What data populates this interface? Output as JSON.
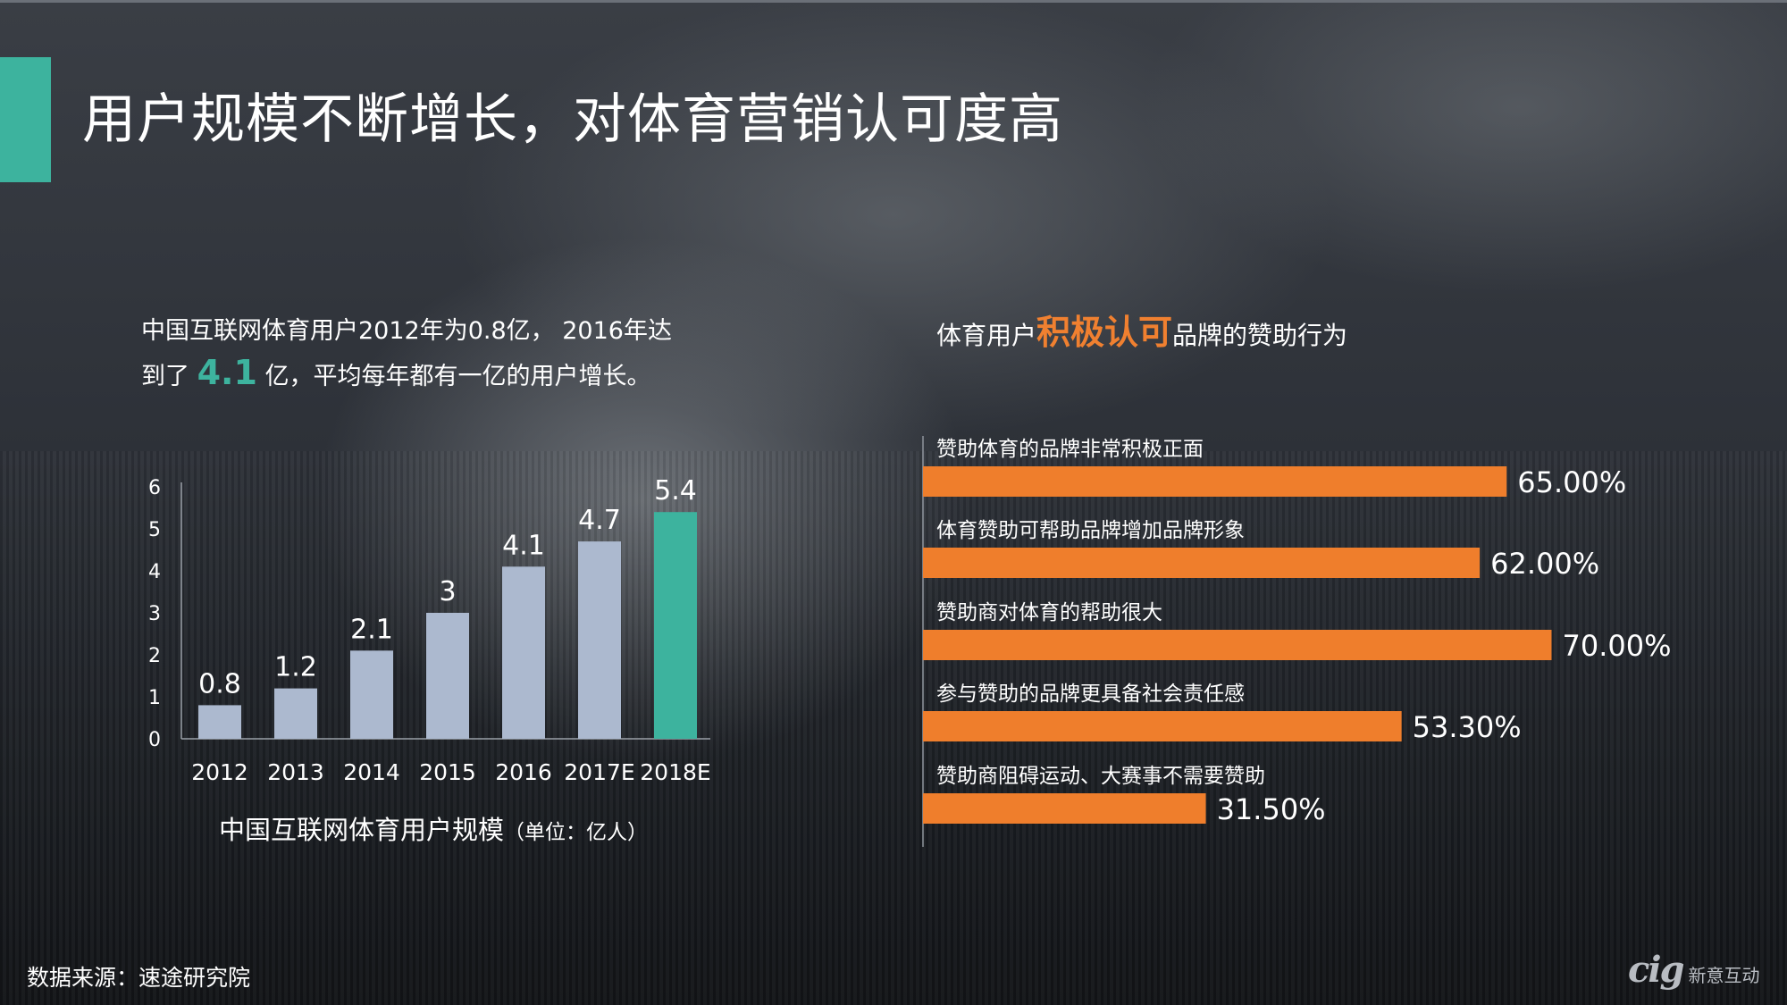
{
  "title": "用户规模不断增长，对体育营销认可度高",
  "intro": {
    "line1": "中国互联网体育用户2012年为0.8亿， 2016年达",
    "line2_prefix": "到了",
    "highlight": "4.1",
    "line2_suffix": "亿，平均每年都有一亿的用户增长。"
  },
  "right_heading": {
    "prefix": "体育用户",
    "highlight": "积极认可",
    "suffix": "品牌的赞助行为"
  },
  "source": "数据来源：速途研究院",
  "logo": {
    "brand": "cig",
    "name": "新意互动"
  },
  "colors": {
    "teal": "#3db39e",
    "bar_gray": "#acb9cf",
    "orange": "#ef7e2c",
    "text": "#ffffff"
  },
  "chart_data": [
    {
      "type": "bar",
      "title": "中国互联网体育用户规模",
      "title_unit": "（单位：亿人）",
      "categories": [
        "2012",
        "2013",
        "2014",
        "2015",
        "2016",
        "2017E",
        "2018E"
      ],
      "values": [
        0.8,
        1.2,
        2.1,
        3,
        4.1,
        4.7,
        5.4
      ],
      "value_labels": [
        "0.8",
        "1.2",
        "2.1",
        "3",
        "4.1",
        "4.7",
        "5.4"
      ],
      "highlight_index": 6,
      "ylim": [
        0,
        6
      ],
      "yticks": [
        "0",
        "1",
        "2",
        "3",
        "4",
        "5",
        "6"
      ],
      "grid": false
    },
    {
      "type": "bar",
      "orientation": "horizontal",
      "categories": [
        "赞助体育的品牌非常积极正面",
        "体育赞助可帮助品牌增加品牌形象",
        "赞助商对体育的帮助很大",
        "参与赞助的品牌更具备社会责任感",
        "赞助商阻碍运动、大赛事不需要赞助"
      ],
      "values": [
        65.0,
        62.0,
        70.0,
        53.3,
        31.5
      ],
      "value_labels": [
        "65.00%",
        "62.00%",
        "70.00%",
        "53.30%",
        "31.50%"
      ],
      "xlim": [
        0,
        100
      ],
      "grid": false
    }
  ]
}
